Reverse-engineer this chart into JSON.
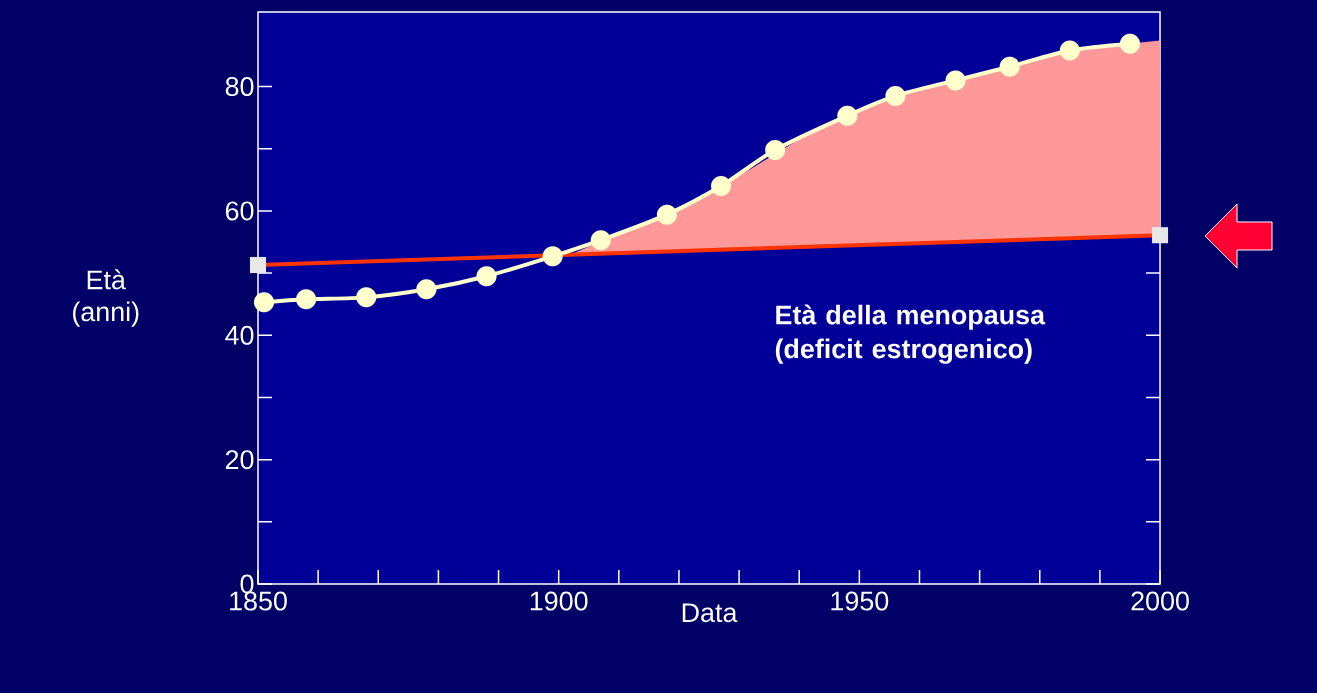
{
  "chart_data": {
    "type": "line",
    "xlabel": "Data",
    "ylabel": "Età (anni)",
    "xlim": [
      1850,
      2000
    ],
    "ylim": [
      0,
      92
    ],
    "xticks": [
      1850,
      {
        "value": 1860,
        "label": null
      },
      {
        "value": 1870,
        "label": null
      },
      {
        "value": 1880,
        "label": null
      },
      {
        "value": 1890,
        "label": null
      },
      1900,
      {
        "value": 1910,
        "label": null
      },
      {
        "value": 1920,
        "label": null
      },
      {
        "value": 1930,
        "label": null
      },
      {
        "value": 1940,
        "label": null
      },
      1950,
      {
        "value": 1960,
        "label": null
      },
      {
        "value": 1970,
        "label": null
      },
      {
        "value": 1980,
        "label": null
      },
      {
        "value": 1990,
        "label": null
      },
      2000
    ],
    "yticks": [
      0,
      {
        "value": 10,
        "label": null
      },
      20,
      {
        "value": 30,
        "label": null
      },
      40,
      {
        "value": 50,
        "label": null
      },
      60,
      {
        "value": 70,
        "label": null
      },
      80
    ],
    "grid": false,
    "annotations": [
      "Età della menopausa (deficit estrogenico)"
    ],
    "series": [
      {
        "type": "area",
        "color": "#ff9999",
        "x": [
          1902,
          1912,
          1922,
          1932,
          1942,
          1952,
          1961,
          1970,
          1980,
          1990,
          2000
        ],
        "values": [
          53.0,
          57.2,
          61.5,
          66.8,
          72.7,
          77.0,
          79.8,
          82.1,
          84.6,
          86.4,
          87.4
        ]
      },
      {
        "color": "#ff3300",
        "marker": "square",
        "x": [
          1850,
          2000
        ],
        "values": [
          51.3,
          56.1
        ]
      },
      {
        "color": "#ffffcc",
        "marker": "circle",
        "x": [
          1851,
          1858,
          1868,
          1878,
          1888,
          1899,
          1907,
          1918,
          1927,
          1936,
          1948,
          1956,
          1966,
          1975,
          1985,
          1995
        ],
        "values": [
          45.3,
          45.8,
          46.1,
          47.4,
          49.5,
          52.7,
          55.3,
          59.4,
          64.0,
          69.8,
          75.3,
          78.5,
          81.0,
          83.2,
          85.8,
          86.9
        ]
      }
    ]
  }
}
